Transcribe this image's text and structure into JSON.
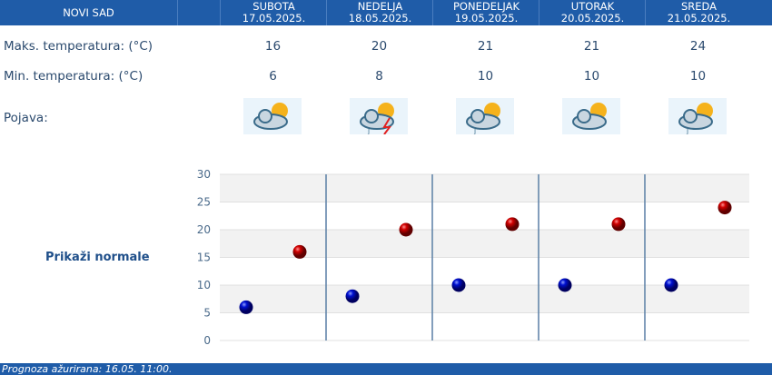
{
  "location": "NOVI SAD",
  "days": [
    {
      "name": "SUBOTA",
      "date": "17.05.2025.",
      "max": "16",
      "min": "6",
      "icon": "partly-cloudy-icon"
    },
    {
      "name": "NEDELJA",
      "date": "18.05.2025.",
      "max": "20",
      "min": "8",
      "icon": "thunderstorm-icon"
    },
    {
      "name": "PONEDELJAK",
      "date": "19.05.2025.",
      "max": "21",
      "min": "10",
      "icon": "cloudy-light-rain-icon"
    },
    {
      "name": "UTORAK",
      "date": "20.05.2025.",
      "max": "21",
      "min": "10",
      "icon": "partly-cloudy-icon"
    },
    {
      "name": "SREDA",
      "date": "21.05.2025.",
      "max": "24",
      "min": "10",
      "icon": "cloudy-light-rain-icon"
    }
  ],
  "labels": {
    "max": "Maks. temperatura: (°C)",
    "min": "Min. temperatura: (°C)",
    "phenomenon": "Pojava:"
  },
  "show_normals": "Prikaži normale",
  "footer": "Prognoza ažurirana:  16.05. 11:00.",
  "chart_data": {
    "type": "scatter",
    "categories": [
      "17.05.",
      "18.05.",
      "19.05.",
      "20.05.",
      "21.05."
    ],
    "series": [
      {
        "name": "min",
        "color": "#0000cc",
        "values": [
          6,
          8,
          10,
          10,
          10
        ]
      },
      {
        "name": "max",
        "color": "#cc0000",
        "values": [
          16,
          20,
          21,
          21,
          24
        ]
      }
    ],
    "ylim": [
      0,
      30
    ],
    "yticks": [
      "0",
      "5",
      "10",
      "15",
      "20",
      "25",
      "30"
    ]
  }
}
